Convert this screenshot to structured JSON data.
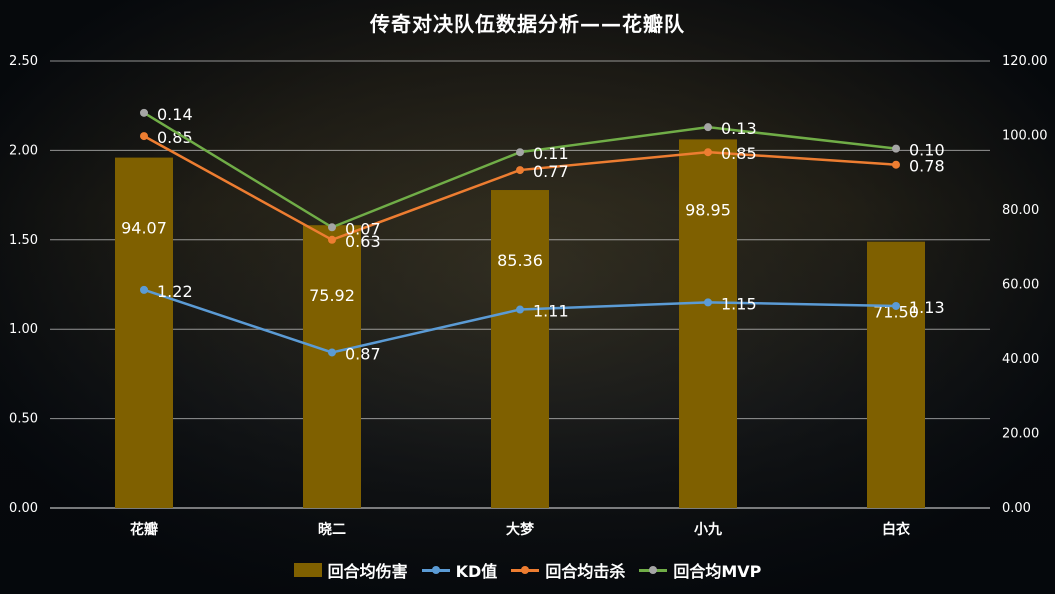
{
  "chart_data": {
    "type": "bar",
    "title": "传奇对决队伍数据分析——花瓣队",
    "categories": [
      "花瓣",
      "晓二",
      "大梦",
      "小九",
      "白衣"
    ],
    "left_axis": {
      "ylim": [
        0,
        2.5
      ],
      "ticks": [
        "0.00",
        "0.50",
        "1.00",
        "1.50",
        "2.00",
        "2.50"
      ]
    },
    "right_axis": {
      "ylim": [
        0,
        120
      ],
      "ticks": [
        "0.00",
        "20.00",
        "40.00",
        "60.00",
        "80.00",
        "100.00",
        "120.00"
      ]
    },
    "grid": true,
    "legend_position": "bottom",
    "series": [
      {
        "name": "回合均伤害",
        "kind": "bar",
        "axis": "right",
        "color": "#7f6000",
        "values": [
          94.07,
          75.92,
          85.36,
          98.95,
          71.5
        ],
        "labels": [
          "94.07",
          "75.92",
          "85.36",
          "98.95",
          "71.50"
        ]
      },
      {
        "name": "KD值",
        "kind": "line",
        "axis": "left",
        "color": "#5b9bd5",
        "values": [
          1.22,
          0.87,
          1.11,
          1.15,
          1.13
        ],
        "labels": [
          "1.22",
          "0.87",
          "1.11",
          "1.15",
          "1.13"
        ]
      },
      {
        "name": "回合均击杀",
        "kind": "line",
        "axis": "left",
        "color": "#ed7d31",
        "values": [
          2.08,
          1.5,
          1.89,
          1.99,
          1.92
        ],
        "labels": [
          "0.85",
          "0.63",
          "0.77",
          "0.85",
          "0.78"
        ]
      },
      {
        "name": "回合均MVP",
        "kind": "line",
        "axis": "left",
        "color": "#70ad47",
        "marker_color": "#a5a5a5",
        "values": [
          2.21,
          1.57,
          1.99,
          2.13,
          2.01
        ],
        "labels": [
          "0.14",
          "0.07",
          "0.11",
          "0.13",
          "0.10"
        ]
      }
    ]
  }
}
